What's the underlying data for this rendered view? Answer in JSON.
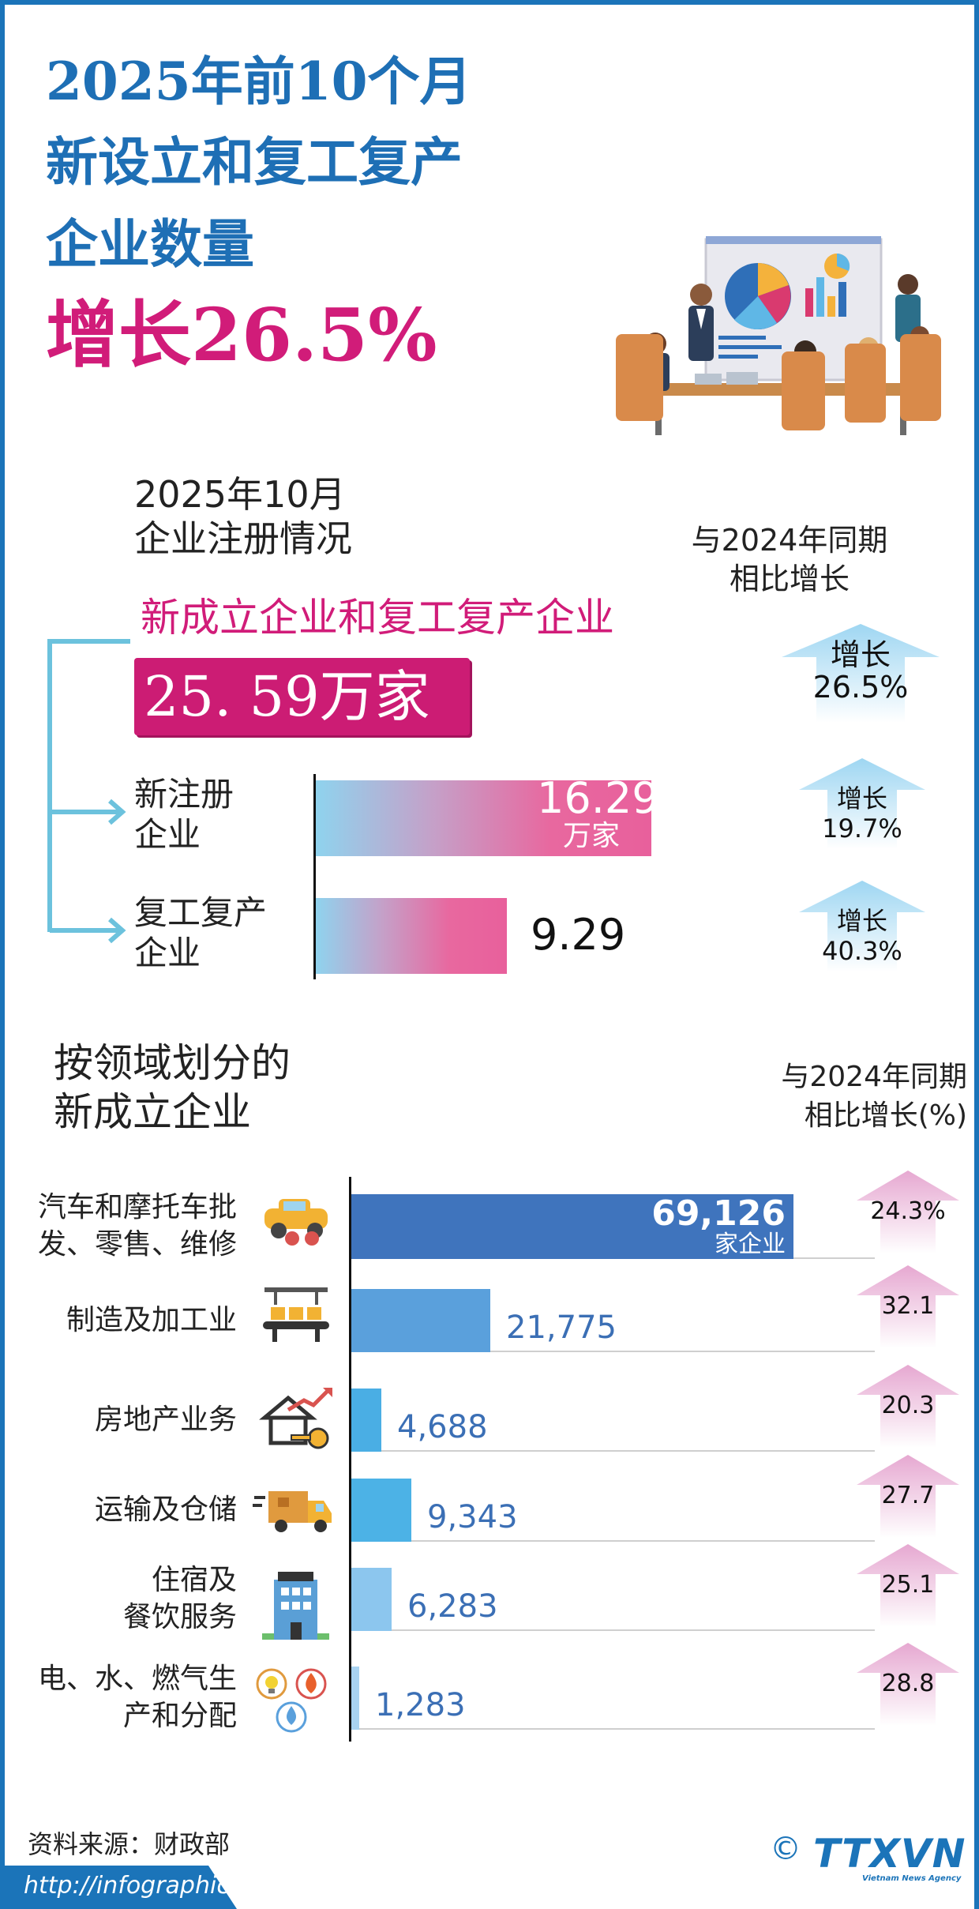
{
  "header": {
    "title_lines": [
      "2025年前10个月",
      "新设立和复工复产",
      "企业数量"
    ],
    "growth": "增长26.5%"
  },
  "registration": {
    "title_lines": [
      "2025年10月",
      "企业注册情况"
    ],
    "compare_header_lines": [
      "与2024年同期",
      "相比增长"
    ],
    "subtitle": "新成立企业和复工复产企业",
    "total": "25. 59万家",
    "total_growth_label": "增长",
    "total_growth": "26.5%",
    "rows": [
      {
        "label_lines": [
          "新注册",
          "企业"
        ],
        "value": 16.29,
        "value_text": "16.29",
        "unit": "万家",
        "growth_label": "增长",
        "growth": "19.7%"
      },
      {
        "label_lines": [
          "复工复产",
          "企业"
        ],
        "value": 9.29,
        "value_text": "9.29",
        "unit": "",
        "growth_label": "增长",
        "growth": "40.3%"
      }
    ]
  },
  "sectors": {
    "title_lines": [
      "按领域划分的",
      "新成立企业"
    ],
    "compare_header_lines": [
      "与2024年同期",
      "相比增长(%)"
    ]
  },
  "chart_data": {
    "type": "bar",
    "orientation": "horizontal",
    "categories": [
      "汽车和摩托车批发、零售、维修",
      "制造及加工业",
      "房地产业务",
      "运输及仓储",
      "住宿及餐饮服务",
      "电、水、燃气生产和分配"
    ],
    "values": [
      69126,
      21775,
      4688,
      9343,
      6283,
      1283
    ],
    "value_labels": [
      "69,126",
      "21,775",
      "4,688",
      "9,343",
      "6,283",
      "1,283"
    ],
    "first_unit": "家企业",
    "growth_pct": [
      "24.3%",
      "32.1",
      "20.3",
      "27.7",
      "25.1",
      "28.8"
    ],
    "colors": [
      "#3f74bd",
      "#5aa0dc",
      "#4aaee4",
      "#4cb2e6",
      "#8cc6ee",
      "#a9d3f1"
    ]
  },
  "footer": {
    "source": "资料来源：财政部",
    "url": "http://infographics.vn",
    "copyright": "©",
    "logo": "TTXVN",
    "logo_sub": "Vietnam News Agency"
  }
}
